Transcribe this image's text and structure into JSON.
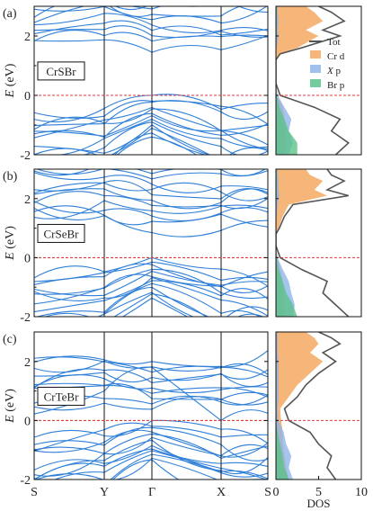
{
  "figure": {
    "k_labels": [
      "S",
      "Y",
      "Γ",
      "X",
      "S"
    ],
    "dos_xlabel": "DOS",
    "dos_ticks": [
      "0",
      "5",
      "10"
    ],
    "energy_unit": "(eV)",
    "energy_symbol": "E",
    "colors": {
      "bands": "#2f7fd8",
      "fermi": "#e0393e",
      "tot": "#555555",
      "cr_d": "#f4a962",
      "x_p": "#8fb5ea",
      "br_p": "#5cc28a"
    }
  },
  "chart_data": [
    {
      "type": "line",
      "panel_label": "(a)",
      "material": "CrSBr",
      "xlabel": "",
      "ylabel": "E (eV)",
      "xticks": [
        "S",
        "Y",
        "Γ",
        "X",
        "S"
      ],
      "yticks": [
        -2,
        0,
        2
      ],
      "ylim": [
        -2,
        3
      ],
      "fermi_level": 0,
      "band_edges": {
        "vbm": 0.0,
        "cbm": 1.45,
        "cbm_point": "Γ"
      },
      "legend": [
        "Tot",
        "Cr d",
        "X p",
        "Br p"
      ],
      "legend_position": "right",
      "dos": {
        "xlim": [
          0,
          10
        ],
        "energy": [
          -2.0,
          -1.6,
          -1.2,
          -0.8,
          -0.4,
          0.0,
          0.4,
          0.8,
          1.2,
          1.4,
          1.6,
          2.0,
          2.2,
          2.5,
          2.8,
          3.0
        ],
        "tot": [
          7.0,
          8.5,
          6.5,
          7.5,
          4.5,
          0.5,
          0.0,
          0.0,
          0.0,
          0.5,
          3.0,
          7.5,
          5.5,
          8.0,
          6.5,
          5.0
        ],
        "cr_d": [
          1.0,
          1.2,
          1.0,
          1.0,
          0.8,
          0.2,
          0.0,
          0.0,
          0.0,
          0.4,
          2.5,
          5.0,
          3.5,
          5.5,
          4.5,
          3.5
        ],
        "x_p": [
          1.5,
          2.0,
          1.5,
          1.8,
          1.0,
          0.2,
          0.0,
          0.0,
          0.0,
          0.0,
          0.1,
          0.3,
          0.2,
          0.3,
          0.2,
          0.2
        ],
        "br_p": [
          2.5,
          2.5,
          1.5,
          1.0,
          0.4,
          0.1,
          0.0,
          0.0,
          0.0,
          0.0,
          0.0,
          0.1,
          0.1,
          0.1,
          0.1,
          0.1
        ]
      }
    },
    {
      "type": "line",
      "panel_label": "(b)",
      "material": "CrSeBr",
      "xlabel": "",
      "ylabel": "E (eV)",
      "xticks": [
        "S",
        "Y",
        "Γ",
        "X",
        "S"
      ],
      "yticks": [
        -2,
        0,
        2
      ],
      "ylim": [
        -2,
        3
      ],
      "fermi_level": 0,
      "band_edges": {
        "vbm": 0.0,
        "cbm": 0.85,
        "cbm_point": "Γ"
      },
      "dos": {
        "xlim": [
          0,
          10
        ],
        "energy": [
          -2.0,
          -1.6,
          -1.2,
          -0.8,
          -0.4,
          0.0,
          0.4,
          0.8,
          1.0,
          1.4,
          1.8,
          2.1,
          2.3,
          2.6,
          2.8,
          3.0
        ],
        "tot": [
          8.5,
          7.0,
          5.5,
          6.0,
          3.0,
          0.5,
          0.0,
          0.0,
          0.4,
          1.0,
          2.0,
          8.5,
          6.0,
          8.0,
          6.5,
          6.0
        ],
        "cr_d": [
          1.0,
          1.0,
          0.8,
          0.8,
          0.5,
          0.2,
          0.0,
          0.0,
          0.3,
          0.8,
          1.5,
          6.0,
          4.5,
          5.5,
          4.0,
          3.5
        ],
        "x_p": [
          2.0,
          2.2,
          1.8,
          1.5,
          0.8,
          0.2,
          0.0,
          0.0,
          0.0,
          0.1,
          0.2,
          0.4,
          0.3,
          0.3,
          0.2,
          0.2
        ],
        "br_p": [
          2.5,
          2.0,
          1.2,
          0.8,
          0.3,
          0.1,
          0.0,
          0.0,
          0.0,
          0.0,
          0.0,
          0.1,
          0.1,
          0.1,
          0.1,
          0.1
        ]
      }
    },
    {
      "type": "line",
      "panel_label": "(c)",
      "material": "CrTeBr",
      "xlabel": "",
      "ylabel": "E (eV)",
      "xticks": [
        "S",
        "Y",
        "Γ",
        "X",
        "S"
      ],
      "yticks": [
        -2,
        0,
        2
      ],
      "ylim": [
        -2,
        3
      ],
      "fermi_level": 0,
      "band_edges": {
        "vbm": 0.0,
        "cbm": 0.0,
        "cbm_point": "X"
      },
      "dos": {
        "xlim": [
          0,
          10
        ],
        "energy": [
          -2.0,
          -1.6,
          -1.2,
          -0.8,
          -0.4,
          0.0,
          0.4,
          0.8,
          1.2,
          1.6,
          2.0,
          2.3,
          2.6,
          2.8,
          3.0
        ],
        "tot": [
          7.0,
          6.0,
          6.5,
          5.0,
          4.0,
          1.5,
          1.0,
          2.5,
          3.5,
          5.0,
          7.0,
          5.5,
          7.5,
          6.5,
          5.0
        ],
        "cr_d": [
          1.5,
          1.2,
          1.0,
          0.8,
          0.8,
          0.6,
          0.5,
          1.5,
          2.5,
          4.0,
          5.5,
          4.0,
          5.0,
          4.5,
          3.5
        ],
        "x_p": [
          2.0,
          1.5,
          1.8,
          1.2,
          0.9,
          0.3,
          0.2,
          0.3,
          0.3,
          0.3,
          0.3,
          0.2,
          0.2,
          0.2,
          0.2
        ],
        "br_p": [
          1.5,
          1.0,
          0.8,
          0.5,
          0.2,
          0.0,
          0.0,
          0.0,
          0.0,
          0.0,
          0.0,
          0.0,
          0.0,
          0.0,
          0.0
        ]
      }
    }
  ]
}
